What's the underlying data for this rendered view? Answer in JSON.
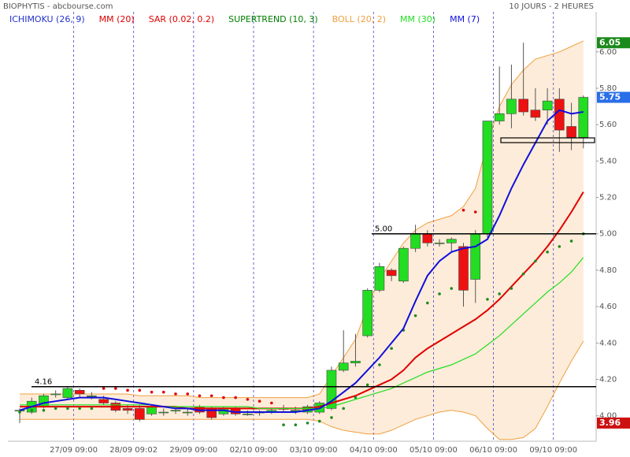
{
  "chart_data": {
    "type": "candlestick",
    "title": "BIOPHYTIS - abcbourse.com",
    "subtitle": "10 JOURS - 2 HEURES",
    "categories": [
      null,
      null,
      null,
      null,
      null,
      "27/09 09:00",
      null,
      null,
      null,
      null,
      "28/09 09:02",
      null,
      null,
      null,
      null,
      "29/09 09:00",
      null,
      null,
      null,
      null,
      "02/10 09:00",
      null,
      null,
      null,
      null,
      "03/10 09:00",
      null,
      null,
      null,
      null,
      "04/10 09:00",
      null,
      null,
      null,
      null,
      "05/10 09:00",
      null,
      null,
      null,
      null,
      "06/10 09:00",
      null,
      null,
      null,
      null,
      "09/10 09:00",
      null,
      null
    ],
    "open": [
      4.03,
      4.02,
      4.05,
      4.12,
      4.1,
      4.14,
      4.11,
      4.09,
      4.07,
      4.04,
      4.04,
      4.01,
      4.02,
      4.03,
      4.02,
      4.05,
      4.04,
      4.01,
      4.04,
      4.01,
      4.02,
      4.02,
      4.04,
      4.03,
      4.02,
      4.02,
      4.04,
      4.25,
      4.29,
      4.44,
      4.69,
      4.8,
      4.74,
      4.92,
      5.0,
      4.95,
      4.95,
      4.93,
      4.75,
      5.0,
      5.62,
      5.66,
      5.74,
      5.68,
      5.68,
      5.74,
      5.59,
      5.53
    ],
    "high": [
      4.04,
      4.1,
      4.12,
      4.14,
      4.16,
      4.15,
      4.13,
      4.11,
      4.08,
      4.06,
      4.06,
      4.06,
      4.04,
      4.05,
      4.04,
      4.06,
      4.05,
      4.05,
      4.05,
      4.03,
      4.03,
      4.04,
      4.06,
      4.05,
      4.06,
      4.08,
      4.27,
      4.47,
      4.45,
      4.7,
      4.84,
      4.81,
      4.93,
      5.05,
      5.02,
      4.97,
      4.98,
      4.95,
      5.02,
      5.62,
      5.92,
      5.93,
      6.05,
      5.8,
      5.8,
      5.8,
      5.72,
      5.76
    ],
    "low": [
      3.96,
      4.01,
      4.04,
      4.1,
      4.09,
      4.1,
      4.09,
      4.06,
      4.02,
      4.01,
      3.97,
      4.0,
      4.0,
      4.01,
      4.0,
      4.01,
      3.98,
      4.0,
      4.0,
      4.0,
      4.0,
      4.01,
      4.02,
      4.01,
      4.01,
      4.01,
      4.03,
      4.24,
      4.27,
      4.43,
      4.68,
      4.74,
      4.73,
      4.9,
      4.93,
      4.93,
      4.9,
      4.6,
      4.62,
      4.98,
      5.6,
      5.58,
      5.65,
      5.62,
      5.6,
      5.45,
      5.46,
      5.47
    ],
    "close": [
      4.03,
      4.08,
      4.11,
      4.12,
      4.15,
      4.12,
      4.11,
      4.07,
      4.03,
      4.03,
      3.98,
      4.05,
      4.02,
      4.03,
      4.02,
      4.02,
      3.99,
      4.04,
      4.01,
      4.01,
      4.02,
      4.03,
      4.04,
      4.03,
      4.05,
      4.07,
      4.25,
      4.29,
      4.3,
      4.69,
      4.82,
      4.77,
      4.92,
      5.0,
      4.95,
      4.95,
      4.97,
      4.69,
      5.0,
      5.62,
      5.66,
      5.74,
      5.67,
      5.64,
      5.73,
      5.57,
      5.53,
      5.75
    ],
    "up_color": "#22dd22",
    "down_color": "#ee1111",
    "indicators": [
      {
        "name": "ICHIMOKU (26, 9)",
        "color": "#2233cc"
      },
      {
        "name": "MM (20)",
        "color": "#e00000",
        "values": [
          4.05,
          4.05,
          4.05,
          4.05,
          4.05,
          4.05,
          4.05,
          4.05,
          4.05,
          4.05,
          4.05,
          4.05,
          4.05,
          4.05,
          4.04,
          4.04,
          4.04,
          4.04,
          4.04,
          4.04,
          4.04,
          4.04,
          4.04,
          4.04,
          4.04,
          4.05,
          4.07,
          4.09,
          4.11,
          4.14,
          4.17,
          4.2,
          4.25,
          4.32,
          4.37,
          4.41,
          4.45,
          4.49,
          4.53,
          4.58,
          4.64,
          4.71,
          4.78,
          4.85,
          4.93,
          5.02,
          5.12,
          5.23
        ]
      },
      {
        "name": "SAR (0.02, 0.2)",
        "color": "#e00000",
        "style": "dots",
        "values": [
          4.02,
          4.03,
          4.03,
          4.04,
          4.04,
          4.04,
          4.04,
          4.15,
          4.15,
          4.14,
          4.14,
          4.13,
          4.13,
          4.12,
          4.12,
          4.11,
          4.11,
          4.1,
          4.1,
          4.09,
          4.08,
          4.07,
          3.95,
          3.95,
          3.96,
          3.97,
          3.99,
          4.04,
          4.1,
          4.17,
          4.28,
          4.37,
          4.47,
          4.55,
          4.62,
          4.67,
          4.7,
          5.13,
          5.12,
          4.64,
          4.67,
          4.7,
          4.78,
          4.85,
          4.9,
          4.93,
          4.96,
          5.0
        ]
      },
      {
        "name": "SUPERTREND (10, 3)",
        "color": "#008000"
      },
      {
        "name": "BOLL (20, 2)",
        "color": "#f0a040",
        "upper": [
          4.12,
          4.12,
          4.12,
          4.12,
          4.12,
          4.12,
          4.12,
          4.12,
          4.12,
          4.12,
          4.11,
          4.11,
          4.11,
          4.11,
          4.11,
          4.1,
          4.1,
          4.1,
          4.1,
          4.1,
          4.1,
          4.1,
          4.1,
          4.1,
          4.1,
          4.12,
          4.22,
          4.32,
          4.42,
          4.6,
          4.75,
          4.85,
          4.95,
          5.02,
          5.06,
          5.08,
          5.1,
          5.15,
          5.25,
          5.5,
          5.7,
          5.82,
          5.9,
          5.96,
          5.98,
          6.0,
          6.03,
          6.06
        ],
        "lower": [
          3.98,
          3.98,
          3.98,
          3.98,
          3.98,
          3.98,
          3.98,
          3.98,
          3.98,
          3.98,
          3.98,
          3.98,
          3.98,
          3.98,
          3.98,
          3.98,
          3.98,
          3.98,
          3.98,
          3.98,
          3.98,
          3.98,
          3.98,
          3.98,
          3.98,
          3.97,
          3.94,
          3.92,
          3.91,
          3.9,
          3.9,
          3.92,
          3.95,
          3.98,
          4.0,
          4.02,
          4.03,
          4.02,
          4.0,
          3.93,
          3.87,
          3.87,
          3.88,
          3.93,
          4.05,
          4.18,
          4.3,
          4.41
        ]
      },
      {
        "name": "MM (30)",
        "color": "#22dd22",
        "values": [
          4.06,
          4.06,
          4.06,
          4.06,
          4.06,
          4.06,
          4.06,
          4.06,
          4.06,
          4.06,
          4.06,
          4.06,
          4.05,
          4.05,
          4.05,
          4.05,
          4.05,
          4.05,
          4.05,
          4.05,
          4.04,
          4.04,
          4.04,
          4.04,
          4.04,
          4.04,
          4.05,
          4.07,
          4.09,
          4.11,
          4.13,
          4.15,
          4.18,
          4.21,
          4.24,
          4.26,
          4.28,
          4.31,
          4.34,
          4.39,
          4.44,
          4.5,
          4.56,
          4.62,
          4.68,
          4.73,
          4.79,
          4.87
        ]
      },
      {
        "name": "MM (7)",
        "color": "#1010dd",
        "values": [
          4.03,
          4.05,
          4.07,
          4.08,
          4.09,
          4.1,
          4.1,
          4.1,
          4.09,
          4.08,
          4.07,
          4.06,
          4.05,
          4.04,
          4.04,
          4.03,
          4.03,
          4.03,
          4.02,
          4.02,
          4.02,
          4.02,
          4.02,
          4.02,
          4.03,
          4.04,
          4.08,
          4.13,
          4.18,
          4.25,
          4.32,
          4.4,
          4.48,
          4.63,
          4.77,
          4.85,
          4.9,
          4.92,
          4.93,
          4.97,
          5.1,
          5.25,
          5.38,
          5.5,
          5.62,
          5.68,
          5.66,
          5.67
        ]
      }
    ],
    "levels": [
      {
        "value": 4.16,
        "label": "4.16"
      },
      {
        "value": 5.0,
        "label": "5.00"
      }
    ],
    "price_tags": [
      {
        "value": 6.05,
        "label": "6.05",
        "color": "#1a8a1a"
      },
      {
        "value": 5.75,
        "label": "5.75",
        "color": "#2a6ee8"
      },
      {
        "value": 3.96,
        "label": "3.96",
        "color": "#cc1111"
      }
    ],
    "ylim": [
      3.86,
      6.22
    ],
    "yticks": [
      {
        "value": 4.0,
        "label": "4.00"
      },
      {
        "value": 4.2,
        "label": "4.20"
      },
      {
        "value": 4.4,
        "label": "4.40"
      },
      {
        "value": 4.6,
        "label": "4.60"
      },
      {
        "value": 4.8,
        "label": "4.80"
      },
      {
        "value": 5.0,
        "label": "5.00"
      },
      {
        "value": 5.2,
        "label": "5.20"
      },
      {
        "value": 5.4,
        "label": "5.40"
      },
      {
        "value": 5.6,
        "label": "5.60"
      },
      {
        "value": 5.8,
        "label": "5.80"
      },
      {
        "value": 6.0,
        "label": "6.00"
      }
    ]
  }
}
